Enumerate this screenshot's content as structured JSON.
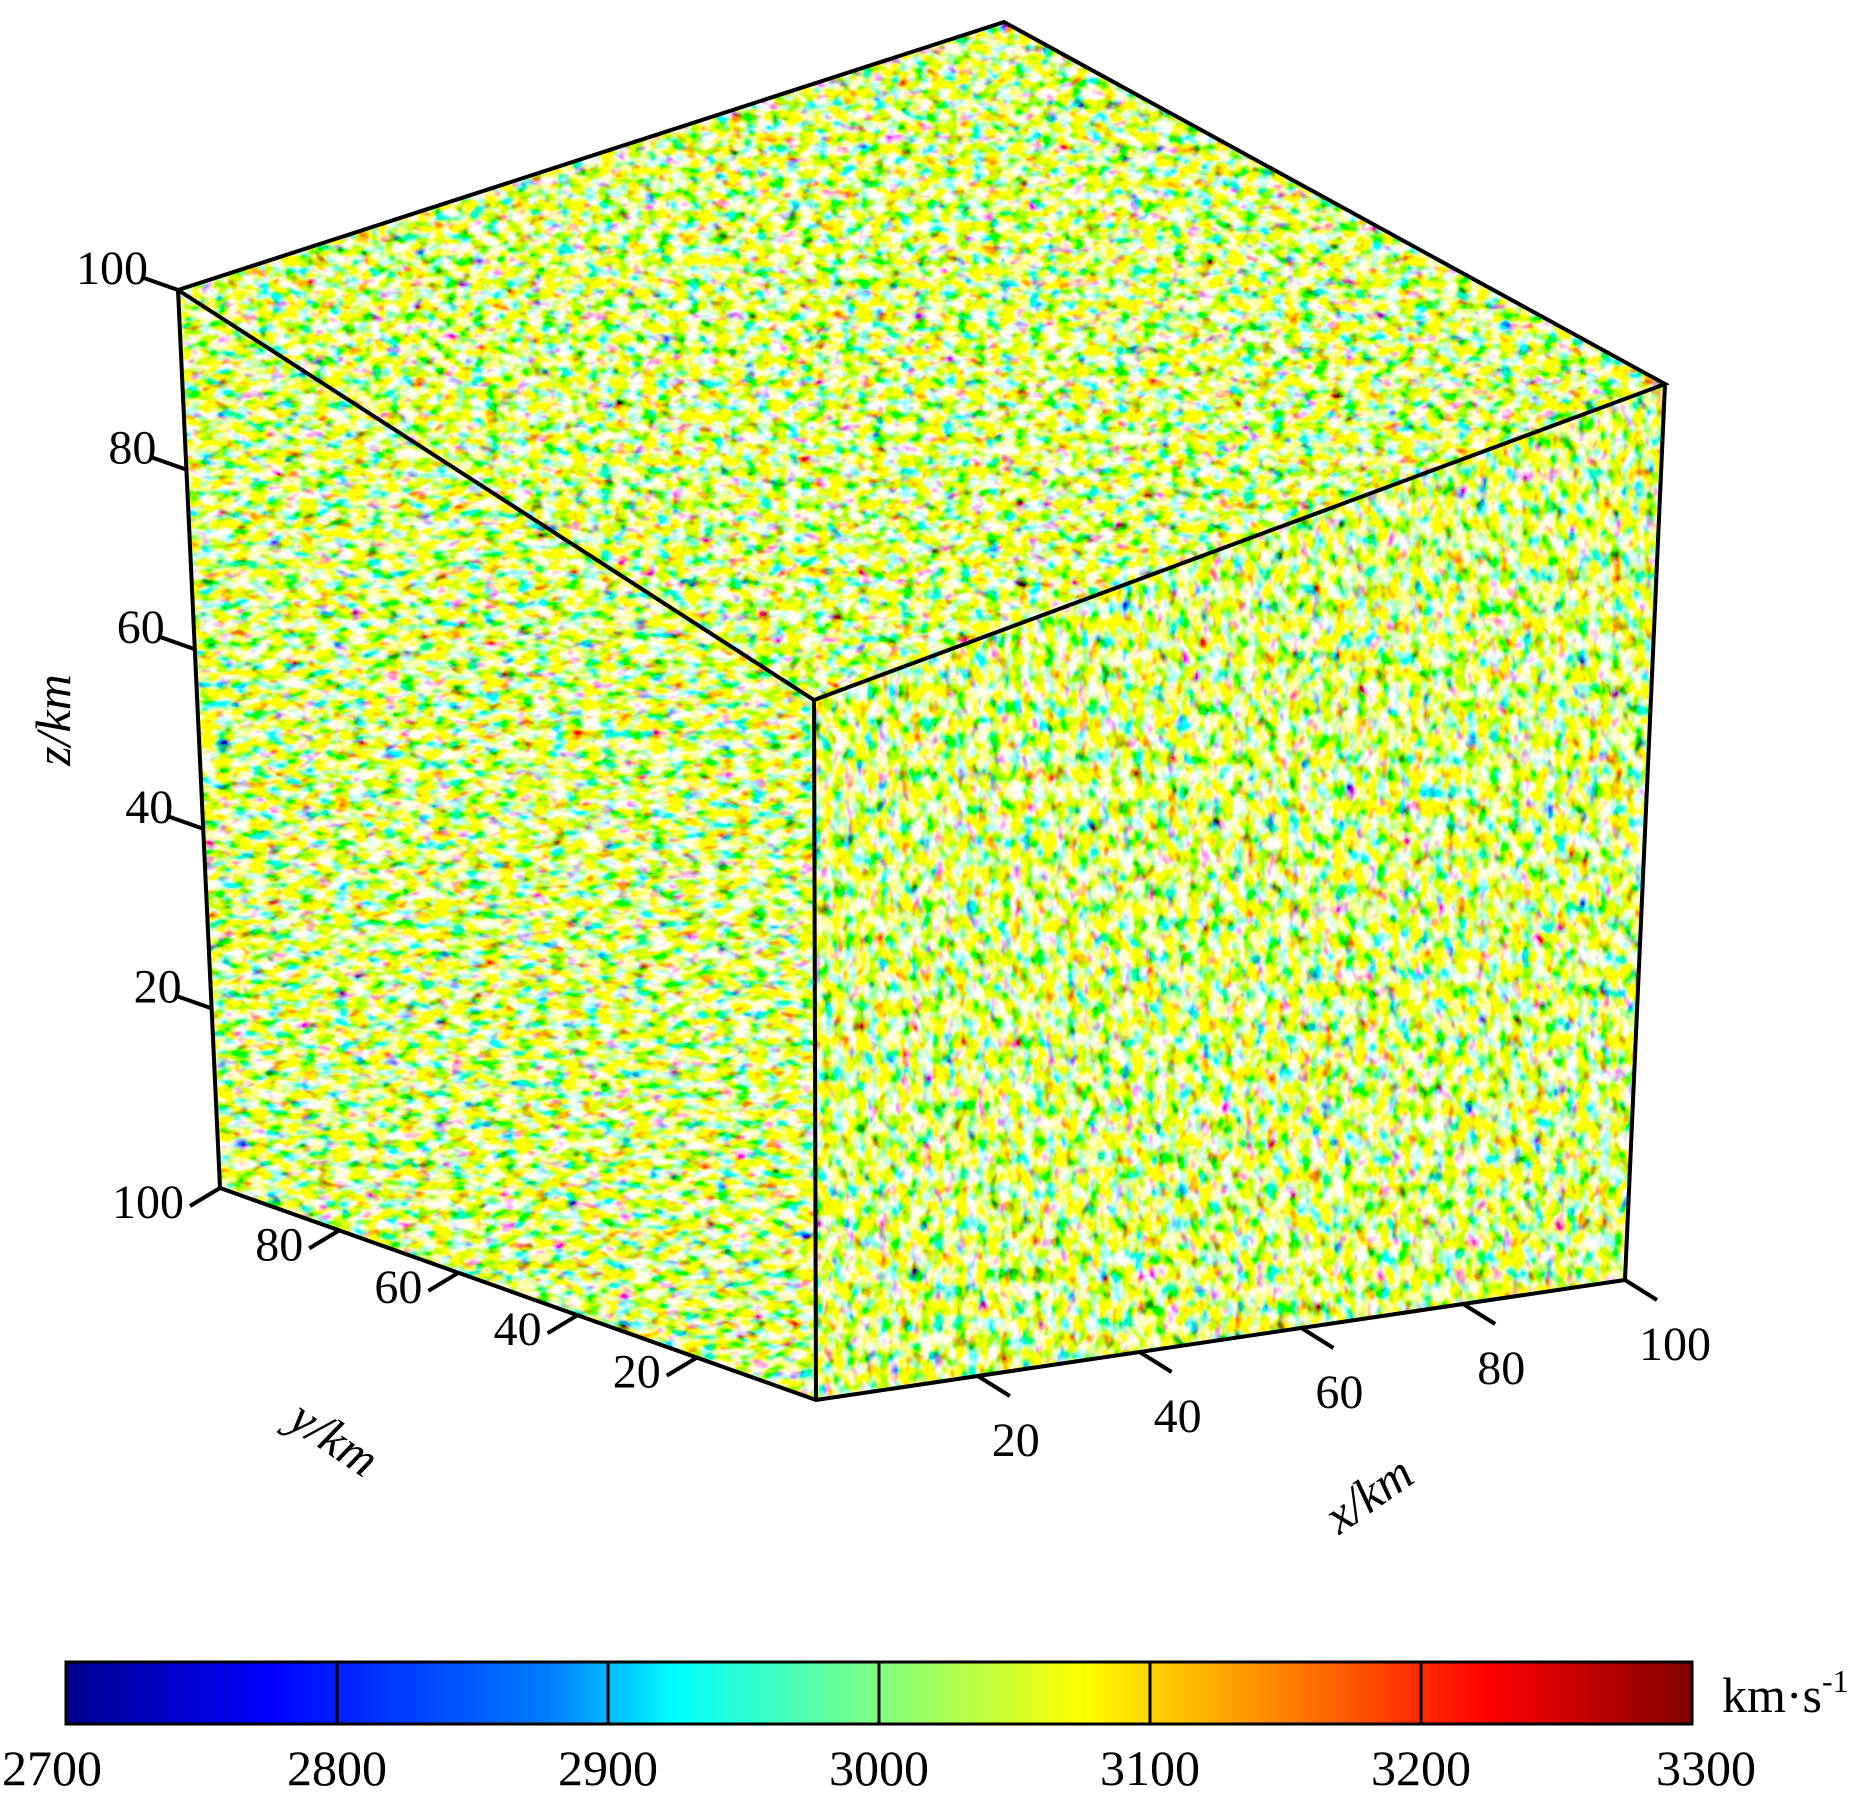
{
  "chart_data": {
    "type": "heatmap",
    "title": "",
    "description_kind": "3D velocity volume",
    "axes": {
      "x": {
        "label": "x/km",
        "range": [
          0,
          100
        ],
        "ticks": [
          "20",
          "40",
          "60",
          "80",
          "100"
        ]
      },
      "y": {
        "label": "y/km",
        "range": [
          0,
          100
        ],
        "ticks": [
          "20",
          "40",
          "60",
          "80",
          "100"
        ]
      },
      "z": {
        "label": "z/km",
        "range": [
          0,
          100
        ],
        "ticks": [
          "20",
          "40",
          "60",
          "80",
          "100"
        ]
      }
    },
    "colorbar": {
      "unit_base": "km·s",
      "unit_exp": "-1",
      "range": [
        2700,
        3300
      ],
      "ticks": [
        "2700",
        "2800",
        "2900",
        "3000",
        "3100",
        "3200",
        "3300"
      ],
      "colormap": "jet",
      "stops": [
        "#00008f",
        "#0000ff",
        "#0080ff",
        "#00ffff",
        "#80ff80",
        "#ffff00",
        "#ff8000",
        "#ff0000",
        "#800000"
      ]
    },
    "grid": false,
    "legend": "bottom"
  }
}
